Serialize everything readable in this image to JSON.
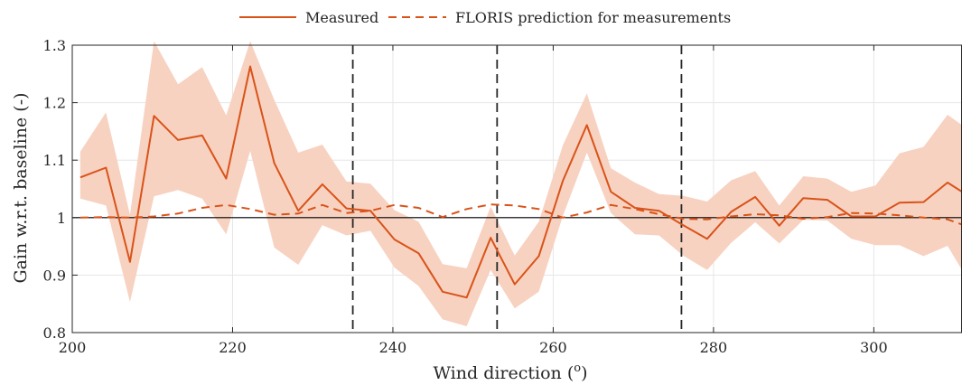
{
  "chart_data": {
    "type": "line",
    "title": "",
    "xlabel": "Wind direction (",
    "xlabel_sup": "o",
    "xlabel_end": ")",
    "ylabel": "Gain w.r.t. baseline (-)",
    "xlim": [
      200,
      311
    ],
    "ylim": [
      0.8,
      1.3
    ],
    "x_ticks": [
      200,
      220,
      240,
      260,
      280,
      300
    ],
    "y_ticks": [
      0.8,
      0.9,
      1,
      1.1,
      1.2,
      1.3
    ],
    "x_tick_labels": [
      "200",
      "220",
      "240",
      "260",
      "280",
      "300"
    ],
    "y_tick_labels": [
      "0.8",
      "0.9",
      "1",
      "1.1",
      "1.2",
      "1.3"
    ],
    "grid": true,
    "legend_position": "top",
    "reference_line_y": 1,
    "vertical_dashed_lines_x": [
      235,
      253,
      276
    ],
    "colors": {
      "series": "#d95319",
      "band": "#f7d2c1",
      "grid": "#e6e6e6",
      "reference": "#000000"
    },
    "series": [
      {
        "name": "Measured",
        "style": "solid",
        "x": [
          201,
          204.2,
          207.2,
          210.2,
          213.2,
          216.2,
          219.2,
          222.2,
          225.2,
          228.2,
          231.2,
          234.2,
          237.2,
          240.2,
          243.2,
          246.2,
          249.2,
          252.2,
          255.2,
          258.2,
          261.2,
          264.2,
          267.2,
          270.2,
          273.2,
          276.2,
          279.2,
          282.2,
          285.2,
          288.2,
          291.2,
          294.2,
          297.2,
          300.2,
          303.2,
          306.2,
          309.2,
          311
        ],
        "values": [
          1.07,
          1.087,
          0.923,
          1.177,
          1.135,
          1.143,
          1.068,
          1.263,
          1.095,
          1.012,
          1.058,
          1.016,
          1.012,
          0.962,
          0.938,
          0.871,
          0.861,
          0.965,
          0.884,
          0.933,
          1.064,
          1.161,
          1.045,
          1.017,
          1.012,
          0.987,
          0.963,
          1.01,
          1.036,
          0.986,
          1.034,
          1.031,
          1.002,
          1.002,
          1.026,
          1.027,
          1.061,
          1.045
        ]
      },
      {
        "name": "FLORIS prediction for measurements",
        "style": "dashed",
        "x": [
          201,
          204.2,
          207.2,
          210.2,
          213.2,
          216.2,
          219.2,
          222.2,
          225.2,
          228.2,
          231.2,
          234.2,
          237.2,
          240.2,
          243.2,
          246.2,
          249.2,
          252.2,
          255.2,
          258.2,
          261.2,
          264.2,
          267.2,
          270.2,
          273.2,
          276.2,
          279.2,
          282.2,
          285.2,
          288.2,
          291.2,
          294.2,
          297.2,
          300.2,
          303.2,
          306.2,
          309.2,
          311
        ],
        "values": [
          1.0,
          1.001,
          1.0,
          1.002,
          1.007,
          1.017,
          1.022,
          1.015,
          1.005,
          1.007,
          1.022,
          1.008,
          1.012,
          1.022,
          1.017,
          1.001,
          1.015,
          1.023,
          1.021,
          1.015,
          1.0,
          1.009,
          1.022,
          1.015,
          1.006,
          0.998,
          0.997,
          1.002,
          1.006,
          1.004,
          0.998,
          1.001,
          1.008,
          1.007,
          1.004,
          1.0,
          0.997,
          0.988
        ]
      }
    ],
    "confidence_band": {
      "upper": [
        1.115,
        1.183,
        1.005,
        1.307,
        1.232,
        1.262,
        1.178,
        1.307,
        1.205,
        1.113,
        1.127,
        1.063,
        1.059,
        1.013,
        0.993,
        0.919,
        0.912,
        1.019,
        0.934,
        0.993,
        1.126,
        1.216,
        1.086,
        1.061,
        1.041,
        1.038,
        1.028,
        1.065,
        1.081,
        1.021,
        1.072,
        1.068,
        1.045,
        1.056,
        1.112,
        1.123,
        1.179,
        1.161
      ],
      "lower": [
        1.033,
        1.021,
        0.853,
        1.037,
        1.048,
        1.033,
        0.971,
        1.116,
        0.948,
        0.918,
        0.987,
        0.969,
        0.977,
        0.913,
        0.881,
        0.823,
        0.811,
        0.909,
        0.842,
        0.871,
        1.003,
        1.113,
        1.008,
        0.971,
        0.969,
        0.934,
        0.909,
        0.956,
        0.992,
        0.955,
        0.996,
        0.995,
        0.963,
        0.952,
        0.952,
        0.933,
        0.951,
        0.909
      ]
    }
  }
}
